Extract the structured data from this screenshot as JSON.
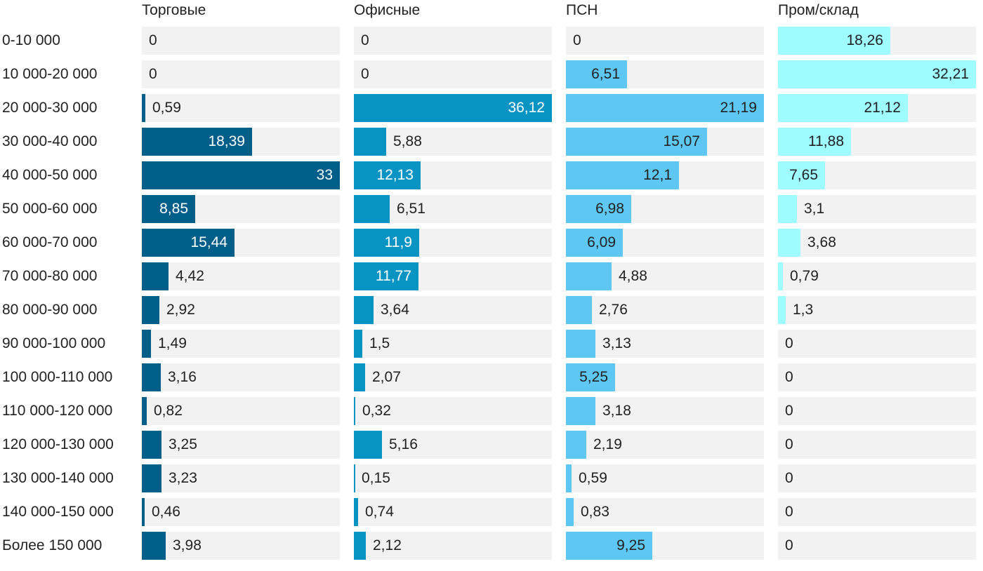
{
  "chart_data": {
    "type": "bar",
    "orientation": "horizontal",
    "layout": "small-multiples",
    "categories": [
      "0-10 000",
      "10 000-20 000",
      "20 000-30 000",
      "30 000-40 000",
      "40 000-50 000",
      "50 000-60 000",
      "60 000-70 000",
      "70 000-80 000",
      "80 000-90 000",
      "90 000-100 000",
      "100 000-110 000",
      "110 000-120 000",
      "120 000-130 000",
      "130 000-140 000",
      "140 000-150 000",
      "Более 150 000"
    ],
    "series": [
      {
        "name": "Торговые",
        "color": "#005f88",
        "text_color_inside": "#ffffff",
        "max": 33,
        "values": [
          0,
          0,
          0.59,
          18.39,
          33,
          8.85,
          15.44,
          4.42,
          2.92,
          1.49,
          3.16,
          0.82,
          3.25,
          3.23,
          0.46,
          3.98
        ],
        "labels": [
          "0",
          "0",
          "0,59",
          "18,39",
          "33",
          "8,85",
          "15,44",
          "4,42",
          "2,92",
          "1,49",
          "3,16",
          "0,82",
          "3,25",
          "3,23",
          "0,46",
          "3,98"
        ]
      },
      {
        "name": "Офисные",
        "color": "#0894c3",
        "text_color_inside": "#ffffff",
        "max": 36.12,
        "values": [
          0,
          0,
          36.12,
          5.88,
          12.13,
          6.51,
          11.9,
          11.77,
          3.64,
          1.5,
          2.07,
          0.32,
          5.16,
          0.15,
          0.74,
          2.12
        ],
        "labels": [
          "0",
          "0",
          "36,12",
          "5,88",
          "12,13",
          "6,51",
          "11,9",
          "11,77",
          "3,64",
          "1,5",
          "2,07",
          "0,32",
          "5,16",
          "0,15",
          "0,74",
          "2,12"
        ]
      },
      {
        "name": "ПСН",
        "color": "#5ec7f3",
        "text_color_inside": "#222222",
        "max": 21.19,
        "values": [
          0,
          6.51,
          21.19,
          15.07,
          12.1,
          6.98,
          6.09,
          4.88,
          2.76,
          3.13,
          5.25,
          3.18,
          2.19,
          0.59,
          0.83,
          9.25
        ],
        "labels": [
          "0",
          "6,51",
          "21,19",
          "15,07",
          "12,1",
          "6,98",
          "6,09",
          "4,88",
          "2,76",
          "3,13",
          "5,25",
          "3,18",
          "2,19",
          "0,59",
          "0,83",
          "9,25"
        ]
      },
      {
        "name": "Пром/склад",
        "color": "#9ffcff",
        "text_color_inside": "#222222",
        "max": 32.21,
        "values": [
          18.26,
          32.21,
          21.12,
          11.88,
          7.65,
          3.1,
          3.68,
          0.79,
          1.3,
          0,
          0,
          0,
          0,
          0,
          0,
          0
        ],
        "labels": [
          "18,26",
          "32,21",
          "21,12",
          "11,88",
          "7,65",
          "3,1",
          "3,68",
          "0,79",
          "1,3",
          "0",
          "0",
          "0",
          "0",
          "0",
          "0",
          "0"
        ]
      }
    ],
    "title": "",
    "xlabel": "",
    "ylabel": ""
  }
}
